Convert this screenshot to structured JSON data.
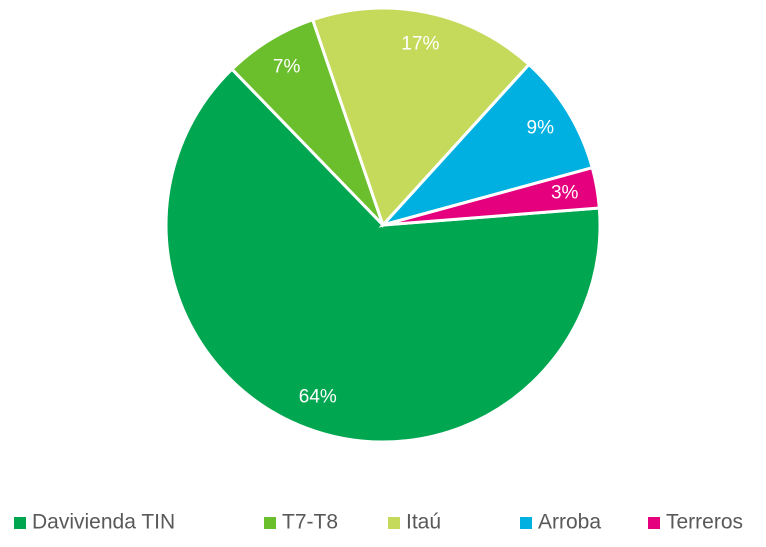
{
  "chart_data": {
    "type": "pie",
    "categories": [
      "Davivienda TIN",
      "T7-T8",
      "Itaú",
      "Arroba",
      "Terreros"
    ],
    "values": [
      64,
      7,
      17,
      9,
      3
    ],
    "value_labels": [
      "64%",
      "7%",
      "17%",
      "9%",
      "3%"
    ],
    "colors": [
      "#00a650",
      "#6cbf2c",
      "#c5d95b",
      "#00b0e0",
      "#e5007d"
    ],
    "legend": "bottom"
  }
}
